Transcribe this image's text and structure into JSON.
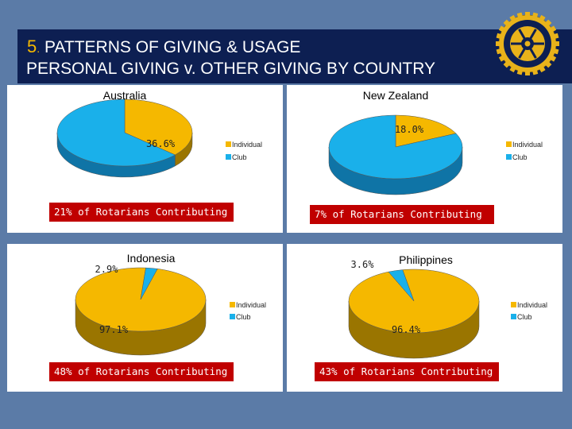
{
  "header": {
    "number": "5",
    "dot": ".",
    "line1": " PATTERNS OF GIVING & USAGE",
    "line2": "PERSONAL GIVING v. OTHER GIVING BY COUNTRY"
  },
  "colors": {
    "individual_top": "#f5b800",
    "individual_side": "#9a7500",
    "club_top": "#1ab0ea",
    "club_side": "#0f74a6",
    "banner": "#c00000",
    "title_bg": "#0d1f52",
    "slide_bg": "#5b7ba7"
  },
  "chart_data": [
    {
      "type": "pie",
      "title": "Australia",
      "labels": [
        "Individual",
        "Club"
      ],
      "values": [
        36.6,
        63.4
      ],
      "data_labels": [
        "36.6%"
      ],
      "legend": [
        "Individual",
        "Club"
      ],
      "legend_position": "right",
      "note": "21% of Rotarians Contributing"
    },
    {
      "type": "pie",
      "title": "New Zealand",
      "labels": [
        "Individual",
        "Club"
      ],
      "values": [
        18.0,
        82.0
      ],
      "data_labels": [
        "18.0%"
      ],
      "legend": [
        "Individual",
        "Club"
      ],
      "legend_position": "right",
      "note": "7% of Rotarians Contributing"
    },
    {
      "type": "pie",
      "title": "Indonesia",
      "labels": [
        "Individual",
        "Club"
      ],
      "values": [
        97.1,
        2.9
      ],
      "data_labels": [
        "97.1%",
        "2.9%"
      ],
      "legend": [
        "Individual",
        "Club"
      ],
      "legend_position": "right",
      "note": "48% of Rotarians Contributing"
    },
    {
      "type": "pie",
      "title": "Philippines",
      "labels": [
        "Individual",
        "Club"
      ],
      "values": [
        96.4,
        3.6
      ],
      "data_labels": [
        "96.4%",
        "3.6%"
      ],
      "legend": [
        "Individual",
        "Club"
      ],
      "legend_position": "right",
      "note": "43% of Rotarians Contributing"
    }
  ]
}
